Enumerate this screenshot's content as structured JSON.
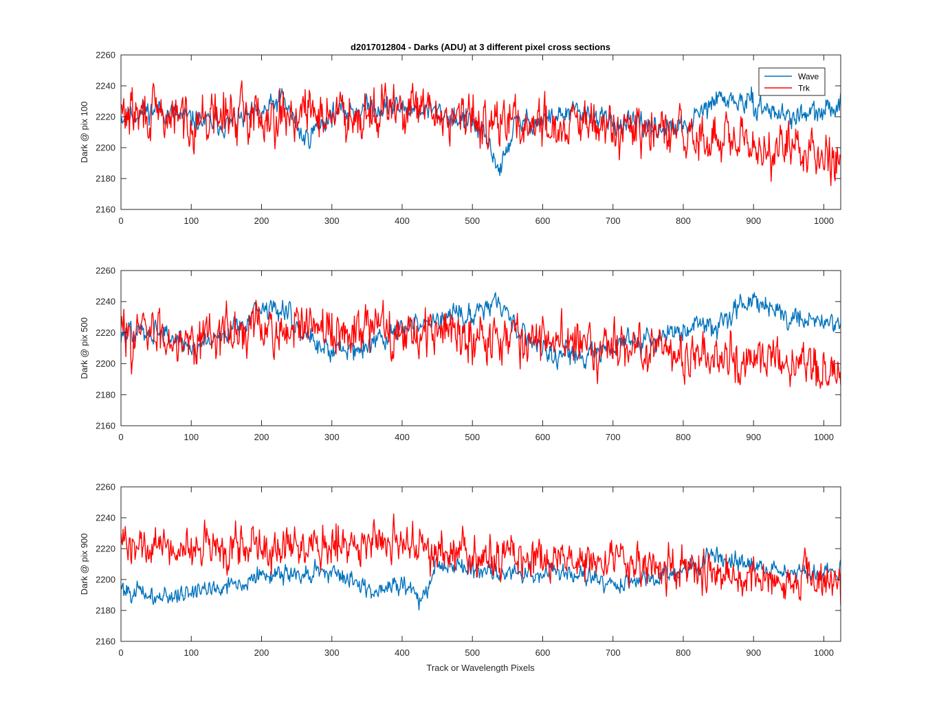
{
  "figure": {
    "title": "d2017012804 - Darks (ADU) at 3 different pixel cross sections",
    "xlabel": "Track or Wavelength Pixels"
  },
  "colors": {
    "wave": "#0072BD",
    "trk": "#FF0000",
    "axes": "#262626"
  },
  "chart_data": [
    {
      "type": "line",
      "ylabel": "Dark @ pix 100",
      "xlim": [
        0,
        1024
      ],
      "ylim": [
        2160,
        2260
      ],
      "xticks": [
        0,
        100,
        200,
        300,
        400,
        500,
        600,
        700,
        800,
        900,
        1000
      ],
      "yticks": [
        2160,
        2180,
        2200,
        2220,
        2240,
        2260
      ],
      "legend": {
        "position": "top-right",
        "entries": [
          "Wave",
          "Trk"
        ]
      },
      "grid": false,
      "series": [
        {
          "name": "Wave",
          "color": "#0072BD",
          "noise": 6,
          "seed": 11,
          "x": [
            0,
            50,
            100,
            150,
            200,
            230,
            260,
            300,
            350,
            400,
            450,
            500,
            520,
            540,
            560,
            600,
            650,
            700,
            750,
            800,
            850,
            900,
            950,
            1000,
            1024
          ],
          "y": [
            2220,
            2225,
            2218,
            2215,
            2222,
            2232,
            2205,
            2222,
            2226,
            2226,
            2223,
            2216,
            2205,
            2185,
            2215,
            2218,
            2223,
            2216,
            2213,
            2212,
            2232,
            2228,
            2220,
            2222,
            2230
          ]
        },
        {
          "name": "Trk",
          "color": "#FF0000",
          "noise": 13,
          "seed": 29,
          "x": [
            0,
            100,
            200,
            300,
            400,
            500,
            600,
            700,
            800,
            900,
            1000,
            1024
          ],
          "y": [
            2222,
            2218,
            2222,
            2222,
            2225,
            2218,
            2215,
            2212,
            2208,
            2200,
            2198,
            2195
          ]
        }
      ]
    },
    {
      "type": "line",
      "ylabel": "Dark @ pix 500",
      "xlim": [
        0,
        1024
      ],
      "ylim": [
        2160,
        2260
      ],
      "xticks": [
        0,
        100,
        200,
        300,
        400,
        500,
        600,
        700,
        800,
        900,
        1000
      ],
      "yticks": [
        2160,
        2180,
        2200,
        2220,
        2240,
        2260
      ],
      "grid": false,
      "series": [
        {
          "name": "Wave",
          "color": "#0072BD",
          "noise": 6,
          "seed": 47,
          "x": [
            0,
            50,
            100,
            150,
            200,
            230,
            260,
            300,
            350,
            400,
            450,
            500,
            530,
            560,
            600,
            650,
            700,
            750,
            800,
            850,
            900,
            950,
            1000,
            1024
          ],
          "y": [
            2218,
            2222,
            2210,
            2220,
            2236,
            2235,
            2220,
            2208,
            2212,
            2222,
            2228,
            2232,
            2242,
            2225,
            2210,
            2204,
            2212,
            2214,
            2222,
            2226,
            2244,
            2230,
            2228,
            2226
          ]
        },
        {
          "name": "Trk",
          "color": "#FF0000",
          "noise": 13,
          "seed": 83,
          "x": [
            0,
            100,
            200,
            300,
            400,
            500,
            600,
            700,
            800,
            900,
            1000,
            1024
          ],
          "y": [
            2220,
            2218,
            2222,
            2220,
            2222,
            2220,
            2215,
            2212,
            2208,
            2202,
            2196,
            2190
          ]
        }
      ]
    },
    {
      "type": "line",
      "ylabel": "Dark @ pix 900",
      "xlim": [
        0,
        1024
      ],
      "ylim": [
        2160,
        2260
      ],
      "xticks": [
        0,
        100,
        200,
        300,
        400,
        500,
        600,
        700,
        800,
        900,
        1000
      ],
      "yticks": [
        2160,
        2180,
        2200,
        2220,
        2240,
        2260
      ],
      "grid": false,
      "series": [
        {
          "name": "Wave",
          "color": "#0072BD",
          "noise": 5,
          "seed": 101,
          "x": [
            0,
            50,
            100,
            150,
            200,
            250,
            300,
            350,
            400,
            425,
            450,
            500,
            550,
            600,
            650,
            700,
            750,
            800,
            850,
            900,
            950,
            1000,
            1024
          ],
          "y": [
            2195,
            2188,
            2192,
            2196,
            2202,
            2204,
            2205,
            2194,
            2197,
            2188,
            2210,
            2208,
            2204,
            2205,
            2203,
            2198,
            2200,
            2206,
            2216,
            2208,
            2206,
            2204,
            2206
          ]
        },
        {
          "name": "Trk",
          "color": "#FF0000",
          "noise": 11,
          "seed": 139,
          "x": [
            0,
            100,
            200,
            300,
            400,
            450,
            500,
            600,
            700,
            800,
            900,
            1000,
            1024
          ],
          "y": [
            2222,
            2220,
            2222,
            2224,
            2222,
            2220,
            2214,
            2212,
            2210,
            2206,
            2202,
            2200,
            2196
          ]
        }
      ]
    }
  ]
}
